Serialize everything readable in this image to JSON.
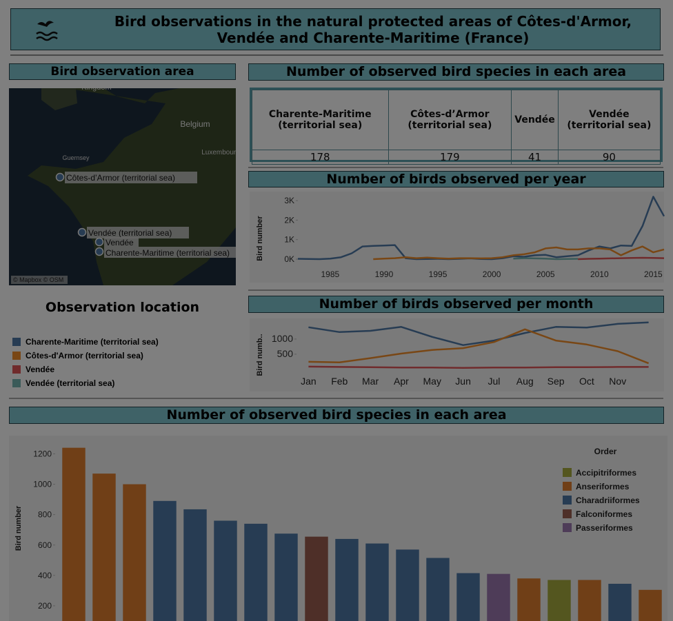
{
  "header": {
    "title": "Bird observations in the natural protected areas of Côtes-d'Armor, Vendée and Charente-Maritime (France)"
  },
  "map": {
    "title": "Bird observation area",
    "labels": [
      "Kingdom",
      "Belgium",
      "Guernsey",
      "Luxembourg"
    ],
    "locations": [
      "Côtes-d’Armor (territorial sea)",
      "Vendée (territorial sea)",
      "Vendée",
      "Charente-Maritime (territorial sea)"
    ],
    "attribution": "© Mapbox © OSM"
  },
  "legend": {
    "title": "Observation location"
  },
  "table": {
    "title": "Number of observed bird species in each area",
    "columns": [
      "Charente-Maritime (territorial sea)",
      "Côtes-d’Armor (territorial sea)",
      "Vendée",
      "Vendée (territorial sea)"
    ],
    "values": [
      178,
      179,
      41,
      90
    ]
  },
  "chart_data": [
    {
      "type": "line",
      "title": "Number of birds observed per year",
      "ylabel": "Bird number",
      "x": [
        1982,
        1983,
        1984,
        1985,
        1986,
        1987,
        1988,
        1989,
        1990,
        1991,
        1992,
        1993,
        1994,
        1995,
        1996,
        1997,
        1998,
        1999,
        2000,
        2001,
        2002,
        2003,
        2004,
        2005,
        2006,
        2007,
        2008,
        2009,
        2010,
        2011,
        2012,
        2013,
        2014,
        2015,
        2016
      ],
      "xlim": [
        1982,
        2016
      ],
      "xticks": [
        1985,
        1990,
        1995,
        2000,
        2005,
        2010,
        2015
      ],
      "ylim": [
        -1200,
        3320
      ],
      "yticks": [
        {
          "value": 0,
          "label": "0K"
        },
        {
          "value": 1000,
          "label": "1K"
        },
        {
          "value": 2000,
          "label": "2K"
        },
        {
          "value": 3000,
          "label": "3K"
        }
      ],
      "series": [
        {
          "name": "Charente-Maritime (territorial sea)",
          "color": "#4e79a7",
          "values": [
            20,
            10,
            0,
            30,
            100,
            300,
            650,
            680,
            700,
            720,
            50,
            0,
            10,
            20,
            0,
            20,
            40,
            10,
            0,
            50,
            150,
            120,
            200,
            220,
            100,
            150,
            200,
            450,
            650,
            550,
            700,
            680,
            1700,
            3200,
            2200
          ]
        },
        {
          "name": "Côtes-d'Armor (territorial sea)",
          "color": "#f28e2b",
          "values": [
            null,
            null,
            null,
            null,
            null,
            null,
            null,
            0,
            30,
            50,
            100,
            50,
            80,
            50,
            30,
            50,
            50,
            40,
            50,
            100,
            200,
            250,
            350,
            550,
            600,
            500,
            500,
            550,
            550,
            500,
            200,
            450,
            650,
            350,
            500
          ]
        },
        {
          "name": "Vendée",
          "color": "#e15759",
          "values": [
            null,
            null,
            null,
            null,
            null,
            null,
            null,
            null,
            null,
            null,
            null,
            null,
            null,
            null,
            null,
            null,
            null,
            null,
            null,
            null,
            null,
            null,
            null,
            null,
            null,
            null,
            0,
            20,
            30,
            40,
            50,
            60,
            70,
            60,
            50
          ]
        },
        {
          "name": "Vendée (territorial sea)",
          "color": "#76b7b2",
          "values": [
            null,
            null,
            null,
            null,
            null,
            null,
            null,
            null,
            null,
            null,
            null,
            null,
            null,
            null,
            null,
            null,
            null,
            null,
            null,
            null,
            30,
            50,
            40,
            30,
            0,
            10,
            20,
            null,
            null,
            null,
            null,
            null,
            null,
            null,
            null
          ]
        }
      ]
    },
    {
      "type": "line",
      "title": "Number of birds observed per month",
      "ylabel": "Bird numb..",
      "categories": [
        "Jan",
        "Feb",
        "Mar",
        "Apr",
        "May",
        "Jun",
        "Jul",
        "Aug",
        "Sep",
        "Oct",
        "Nov",
        null
      ],
      "ylim": [
        -730,
        1680
      ],
      "yticks": [
        500,
        1000
      ],
      "series": [
        {
          "color": "#4e79a7",
          "values": [
            1390,
            1230,
            1270,
            1400,
            1070,
            800,
            950,
            1200,
            1400,
            1380,
            1500,
            1550
          ]
        },
        {
          "color": "#f28e2b",
          "values": [
            250,
            230,
            370,
            520,
            640,
            700,
            900,
            1320,
            950,
            820,
            600,
            200
          ]
        },
        {
          "color": "#e15759",
          "values": [
            90,
            80,
            70,
            60,
            60,
            50,
            60,
            60,
            70,
            70,
            80,
            80
          ]
        }
      ]
    },
    {
      "type": "bar",
      "title": "Number of observed bird species in each area",
      "ylabel": "Bird number",
      "legend_title": "Order",
      "categories": [
        null,
        null,
        null,
        null,
        null,
        null,
        null,
        null,
        null,
        null,
        null,
        null,
        null,
        null,
        null,
        null,
        null,
        null,
        null,
        null
      ],
      "ylim": [
        100,
        1320
      ],
      "yticks": [
        200,
        400,
        600,
        800,
        1000,
        1200
      ],
      "series": [
        {
          "name": "Accipitriformes",
          "color": "#a9ad3f",
          "values": [
            null,
            null,
            null,
            null,
            null,
            null,
            null,
            null,
            null,
            null,
            null,
            null,
            null,
            null,
            null,
            null,
            370,
            null,
            null,
            null
          ]
        },
        {
          "name": "Anseriformes",
          "color": "#e07f2f",
          "values": [
            1240,
            1070,
            1000,
            null,
            null,
            null,
            null,
            null,
            null,
            null,
            null,
            null,
            null,
            null,
            null,
            380,
            null,
            370,
            null,
            305
          ]
        },
        {
          "name": "Charadriiformes",
          "color": "#4e79a7",
          "values": [
            null,
            null,
            null,
            890,
            835,
            760,
            740,
            675,
            null,
            640,
            610,
            570,
            515,
            415,
            null,
            null,
            null,
            null,
            345,
            null
          ]
        },
        {
          "name": "Falconiformes",
          "color": "#9c5f50",
          "values": [
            null,
            null,
            null,
            null,
            null,
            null,
            null,
            null,
            655,
            null,
            null,
            null,
            null,
            null,
            null,
            null,
            null,
            null,
            null,
            null
          ]
        },
        {
          "name": "Passeriformes",
          "color": "#9c78b0",
          "values": [
            null,
            null,
            null,
            null,
            null,
            null,
            null,
            null,
            null,
            null,
            null,
            null,
            null,
            null,
            410,
            null,
            null,
            null,
            null,
            null
          ]
        }
      ]
    }
  ]
}
